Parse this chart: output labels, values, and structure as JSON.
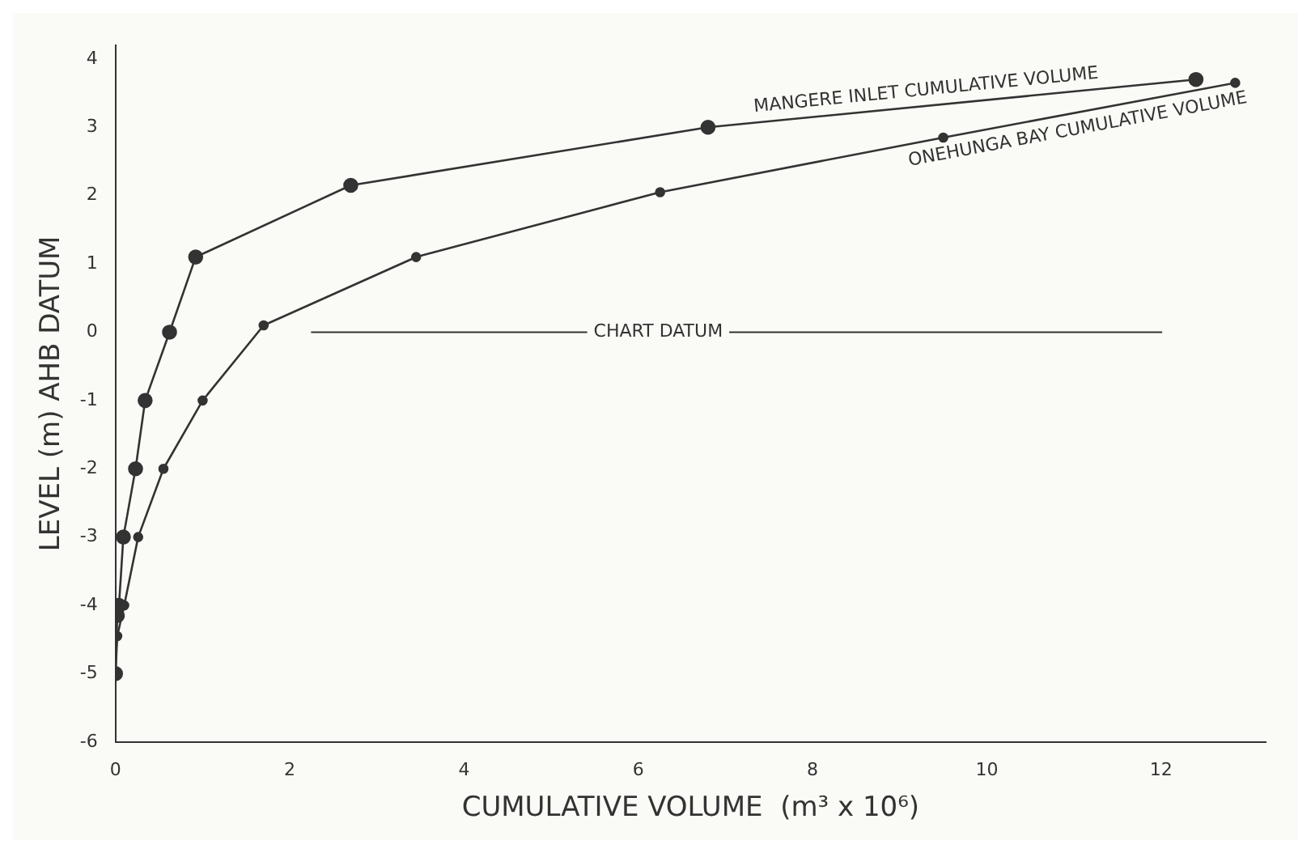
{
  "chart_data": {
    "type": "line",
    "xlabel": "CUMULATIVE VOLUME  (m³ x 10⁶)",
    "ylabel": "LEVEL (m) AHB DATUM",
    "series": [
      {
        "name": "MANGERE INLET CUMULATIVE VOLUME",
        "color": "#333333",
        "x": [
          0,
          0.02,
          0.04,
          0.09,
          0.23,
          0.34,
          0.62,
          0.92,
          2.7,
          6.8,
          12.4
        ],
        "values": [
          -5,
          -4.15,
          -4,
          -3,
          -2,
          -1,
          0,
          1.1,
          2.15,
          3.0,
          3.7
        ]
      },
      {
        "name": "ONEHUNGA BAY CUMULATIVE VOLUME",
        "color": "#333333",
        "x": [
          0,
          0.02,
          0.1,
          0.26,
          0.55,
          1.0,
          1.7,
          3.45,
          6.25,
          9.5,
          12.85
        ],
        "values": [
          -5,
          -4.45,
          -4,
          -3,
          -2,
          -1,
          0.1,
          1.1,
          2.05,
          2.85,
          3.65
        ]
      }
    ],
    "ref_lines": [
      {
        "axis": "y",
        "value": 0,
        "label": "CHART DATUM",
        "color": "#333333"
      }
    ],
    "xlim": [
      0,
      13.2
    ],
    "xticks": [
      0,
      2,
      4,
      6,
      8,
      10,
      12
    ],
    "ylim": [
      -6,
      4.2
    ],
    "yticks": [
      -6,
      -5,
      -4,
      -3,
      -2,
      -1,
      0,
      1,
      2,
      3,
      4
    ],
    "grid": false,
    "legend": false,
    "marker": "circle",
    "line_style": "solid"
  }
}
